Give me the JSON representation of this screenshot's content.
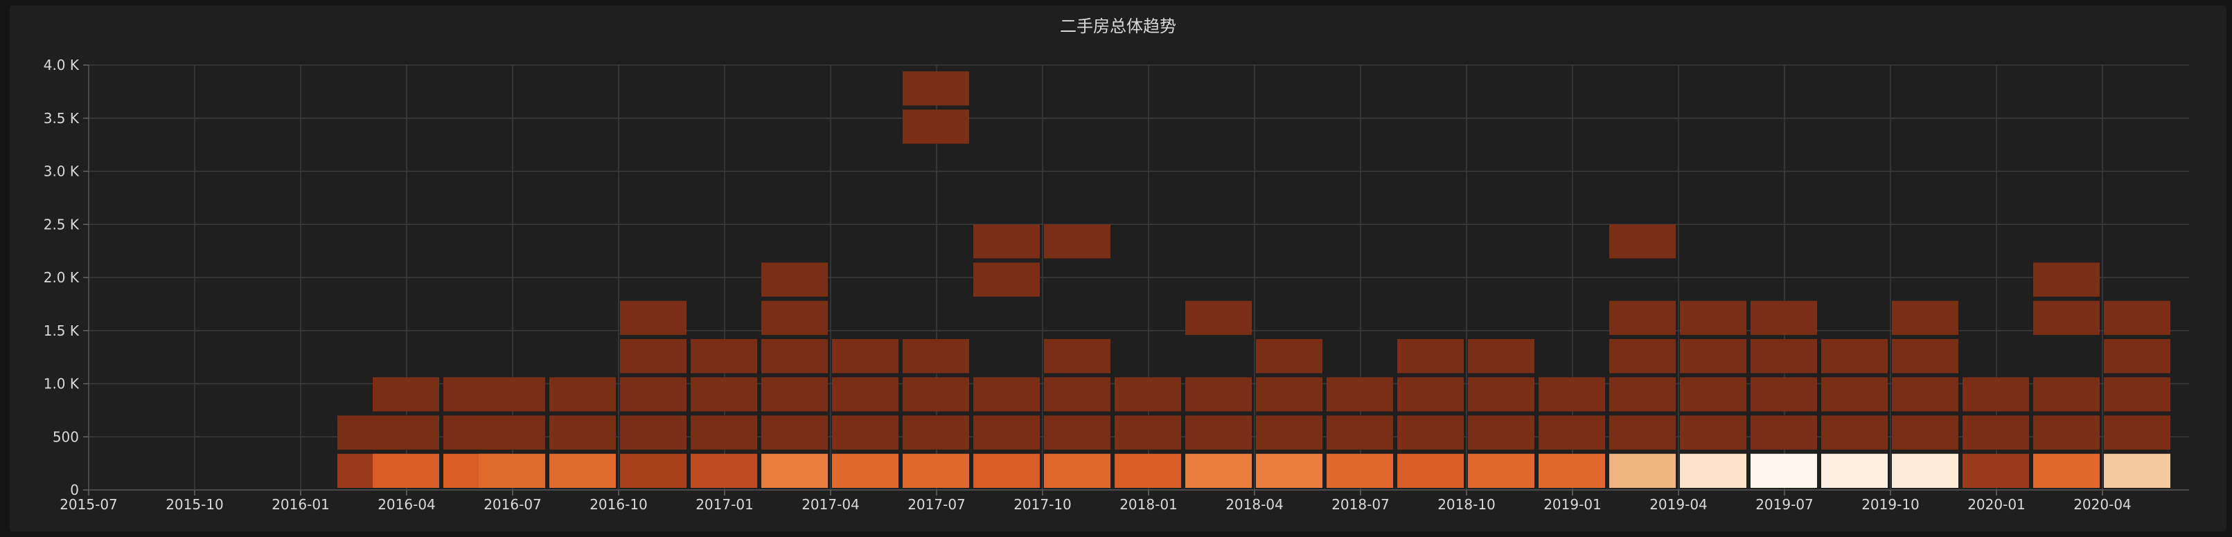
{
  "panel": {
    "title": "二手房总体趋势"
  },
  "chart_data": {
    "type": "heatmap",
    "title": "二手房总体趋势",
    "ylim": [
      0,
      4000
    ],
    "yticks": [
      {
        "value": 0,
        "label": "0"
      },
      {
        "value": 500,
        "label": "500"
      },
      {
        "value": 1000,
        "label": "1.0 K"
      },
      {
        "value": 1500,
        "label": "1.5 K"
      },
      {
        "value": 2000,
        "label": "2.0 K"
      },
      {
        "value": 2500,
        "label": "2.5 K"
      },
      {
        "value": 3000,
        "label": "3.0 K"
      },
      {
        "value": 3500,
        "label": "3.5 K"
      },
      {
        "value": 4000,
        "label": "4.0 K"
      }
    ],
    "xticks": [
      "2015-07",
      "2015-10",
      "2016-01",
      "2016-04",
      "2016-07",
      "2016-10",
      "2017-01",
      "2017-04",
      "2017-07",
      "2017-10",
      "2018-01",
      "2018-04",
      "2018-07",
      "2018-10",
      "2019-01",
      "2019-04",
      "2019-07",
      "2019-10",
      "2020-01",
      "2020-04"
    ],
    "xrange": [
      "2015-07",
      "2020-06"
    ],
    "grid": true,
    "bucket_size": 360,
    "color_scale": [
      "#7a2e15",
      "#9a3a1a",
      "#bf4b20",
      "#d75c25",
      "#e0682c",
      "#e87d3e",
      "#f0b482",
      "#f5c9a0",
      "#fae3c9",
      "#fdf0e3",
      "#fff6ec"
    ],
    "columns": [
      {
        "month": "2016-02",
        "cells": [
          {
            "bucket": 0,
            "color": "#9a3a1a"
          },
          {
            "bucket": 1,
            "color": "#7a2e15"
          }
        ]
      },
      {
        "month": "2016-03",
        "cells": [
          {
            "bucket": 0,
            "color": "#d75c25"
          },
          {
            "bucket": 1,
            "color": "#7a2e15"
          },
          {
            "bucket": 2,
            "color": "#7a2e15"
          }
        ]
      },
      {
        "month": "2016-05",
        "cells": [
          {
            "bucket": 0,
            "color": "#d75c25"
          },
          {
            "bucket": 1,
            "color": "#7a2e15"
          },
          {
            "bucket": 2,
            "color": "#7a2e15"
          }
        ]
      },
      {
        "month": "2016-06",
        "cells": [
          {
            "bucket": 0,
            "color": "#e06a2c"
          },
          {
            "bucket": 1,
            "color": "#7a2e15"
          },
          {
            "bucket": 2,
            "color": "#7a2e15"
          }
        ]
      },
      {
        "month": "2016-08",
        "cells": [
          {
            "bucket": 0,
            "color": "#e06a2c"
          },
          {
            "bucket": 1,
            "color": "#7a2e15"
          },
          {
            "bucket": 2,
            "color": "#7a2e15"
          }
        ]
      },
      {
        "month": "2016-10",
        "cells": [
          {
            "bucket": 0,
            "color": "#a83e1c"
          },
          {
            "bucket": 1,
            "color": "#7a2e15"
          },
          {
            "bucket": 2,
            "color": "#7a2e15"
          },
          {
            "bucket": 3,
            "color": "#7a2e15"
          },
          {
            "bucket": 4,
            "color": "#7a2e15"
          }
        ]
      },
      {
        "month": "2016-12",
        "cells": [
          {
            "bucket": 0,
            "color": "#bf4b20"
          },
          {
            "bucket": 1,
            "color": "#7a2e15"
          },
          {
            "bucket": 2,
            "color": "#7a2e15"
          },
          {
            "bucket": 3,
            "color": "#7a2e15"
          }
        ]
      },
      {
        "month": "2017-02",
        "cells": [
          {
            "bucket": 0,
            "color": "#e87d3e"
          },
          {
            "bucket": 1,
            "color": "#7a2e15"
          },
          {
            "bucket": 2,
            "color": "#7a2e15"
          },
          {
            "bucket": 3,
            "color": "#7a2e15"
          },
          {
            "bucket": 4,
            "color": "#7a2e15"
          },
          {
            "bucket": 5,
            "color": "#7a2e15"
          }
        ]
      },
      {
        "month": "2017-04",
        "cells": [
          {
            "bucket": 0,
            "color": "#e0682c"
          },
          {
            "bucket": 1,
            "color": "#7a2e15"
          },
          {
            "bucket": 2,
            "color": "#7a2e15"
          },
          {
            "bucket": 3,
            "color": "#7a2e15"
          }
        ]
      },
      {
        "month": "2017-06",
        "cells": [
          {
            "bucket": 0,
            "color": "#e0682c"
          },
          {
            "bucket": 1,
            "color": "#7a2e15"
          },
          {
            "bucket": 2,
            "color": "#7a2e15"
          },
          {
            "bucket": 3,
            "color": "#7a2e15"
          },
          {
            "bucket": 9,
            "color": "#7a2e15"
          },
          {
            "bucket": 10,
            "color": "#7a2e15"
          }
        ]
      },
      {
        "month": "2017-08",
        "cells": [
          {
            "bucket": 0,
            "color": "#d75c25"
          },
          {
            "bucket": 1,
            "color": "#7a2e15"
          },
          {
            "bucket": 2,
            "color": "#7a2e15"
          },
          {
            "bucket": 5,
            "color": "#7a2e15"
          },
          {
            "bucket": 6,
            "color": "#7a2e15"
          }
        ]
      },
      {
        "month": "2017-10",
        "cells": [
          {
            "bucket": 0,
            "color": "#e0682c"
          },
          {
            "bucket": 1,
            "color": "#7a2e15"
          },
          {
            "bucket": 2,
            "color": "#7a2e15"
          },
          {
            "bucket": 3,
            "color": "#7a2e15"
          },
          {
            "bucket": 6,
            "color": "#7a2e15"
          }
        ]
      },
      {
        "month": "2017-12",
        "cells": [
          {
            "bucket": 0,
            "color": "#d75c25"
          },
          {
            "bucket": 1,
            "color": "#7a2e15"
          },
          {
            "bucket": 2,
            "color": "#7a2e15"
          }
        ]
      },
      {
        "month": "2018-02",
        "cells": [
          {
            "bucket": 0,
            "color": "#e87d3e"
          },
          {
            "bucket": 1,
            "color": "#7a2e15"
          },
          {
            "bucket": 2,
            "color": "#7a2e15"
          },
          {
            "bucket": 4,
            "color": "#7a2e15"
          }
        ]
      },
      {
        "month": "2018-04",
        "cells": [
          {
            "bucket": 0,
            "color": "#e87d3e"
          },
          {
            "bucket": 1,
            "color": "#7a2e15"
          },
          {
            "bucket": 2,
            "color": "#7a2e15"
          },
          {
            "bucket": 3,
            "color": "#7a2e15"
          }
        ]
      },
      {
        "month": "2018-06",
        "cells": [
          {
            "bucket": 0,
            "color": "#e0682c"
          },
          {
            "bucket": 1,
            "color": "#7a2e15"
          },
          {
            "bucket": 2,
            "color": "#7a2e15"
          }
        ]
      },
      {
        "month": "2018-08",
        "cells": [
          {
            "bucket": 0,
            "color": "#d75c25"
          },
          {
            "bucket": 1,
            "color": "#7a2e15"
          },
          {
            "bucket": 2,
            "color": "#7a2e15"
          },
          {
            "bucket": 3,
            "color": "#7a2e15"
          }
        ]
      },
      {
        "month": "2018-10",
        "cells": [
          {
            "bucket": 0,
            "color": "#e0682c"
          },
          {
            "bucket": 1,
            "color": "#7a2e15"
          },
          {
            "bucket": 2,
            "color": "#7a2e15"
          },
          {
            "bucket": 3,
            "color": "#7a2e15"
          }
        ]
      },
      {
        "month": "2018-12",
        "cells": [
          {
            "bucket": 0,
            "color": "#e0682c"
          },
          {
            "bucket": 1,
            "color": "#7a2e15"
          },
          {
            "bucket": 2,
            "color": "#7a2e15"
          }
        ]
      },
      {
        "month": "2019-02",
        "cells": [
          {
            "bucket": 0,
            "color": "#f0b482"
          },
          {
            "bucket": 1,
            "color": "#7a2e15"
          },
          {
            "bucket": 2,
            "color": "#7a2e15"
          },
          {
            "bucket": 3,
            "color": "#7a2e15"
          },
          {
            "bucket": 4,
            "color": "#7a2e15"
          },
          {
            "bucket": 6,
            "color": "#7a2e15"
          }
        ]
      },
      {
        "month": "2019-04",
        "cells": [
          {
            "bucket": 0,
            "color": "#fae3c9"
          },
          {
            "bucket": 1,
            "color": "#7a2e15"
          },
          {
            "bucket": 2,
            "color": "#7a2e15"
          },
          {
            "bucket": 3,
            "color": "#7a2e15"
          },
          {
            "bucket": 4,
            "color": "#7a2e15"
          }
        ]
      },
      {
        "month": "2019-06",
        "cells": [
          {
            "bucket": 0,
            "color": "#fff6ec"
          },
          {
            "bucket": 1,
            "color": "#7a2e15"
          },
          {
            "bucket": 2,
            "color": "#7a2e15"
          },
          {
            "bucket": 3,
            "color": "#7a2e15"
          },
          {
            "bucket": 4,
            "color": "#7a2e15"
          }
        ]
      },
      {
        "month": "2019-08",
        "cells": [
          {
            "bucket": 0,
            "color": "#fdf0e3"
          },
          {
            "bucket": 1,
            "color": "#7a2e15"
          },
          {
            "bucket": 2,
            "color": "#7a2e15"
          },
          {
            "bucket": 3,
            "color": "#7a2e15"
          }
        ]
      },
      {
        "month": "2019-10",
        "cells": [
          {
            "bucket": 0,
            "color": "#fcecd8"
          },
          {
            "bucket": 1,
            "color": "#7a2e15"
          },
          {
            "bucket": 2,
            "color": "#7a2e15"
          },
          {
            "bucket": 3,
            "color": "#7a2e15"
          },
          {
            "bucket": 4,
            "color": "#7a2e15"
          }
        ]
      },
      {
        "month": "2019-12",
        "cells": [
          {
            "bucket": 0,
            "color": "#9a3a1a"
          },
          {
            "bucket": 1,
            "color": "#7a2e15"
          },
          {
            "bucket": 2,
            "color": "#7a2e15"
          }
        ]
      },
      {
        "month": "2020-02",
        "cells": [
          {
            "bucket": 0,
            "color": "#e0682c"
          },
          {
            "bucket": 1,
            "color": "#7a2e15"
          },
          {
            "bucket": 2,
            "color": "#7a2e15"
          },
          {
            "bucket": 4,
            "color": "#7a2e15"
          },
          {
            "bucket": 5,
            "color": "#7a2e15"
          }
        ]
      },
      {
        "month": "2020-04",
        "cells": [
          {
            "bucket": 0,
            "color": "#f5c9a0"
          },
          {
            "bucket": 1,
            "color": "#7a2e15"
          },
          {
            "bucket": 2,
            "color": "#7a2e15"
          },
          {
            "bucket": 3,
            "color": "#7a2e15"
          },
          {
            "bucket": 4,
            "color": "#7a2e15"
          }
        ]
      }
    ]
  }
}
